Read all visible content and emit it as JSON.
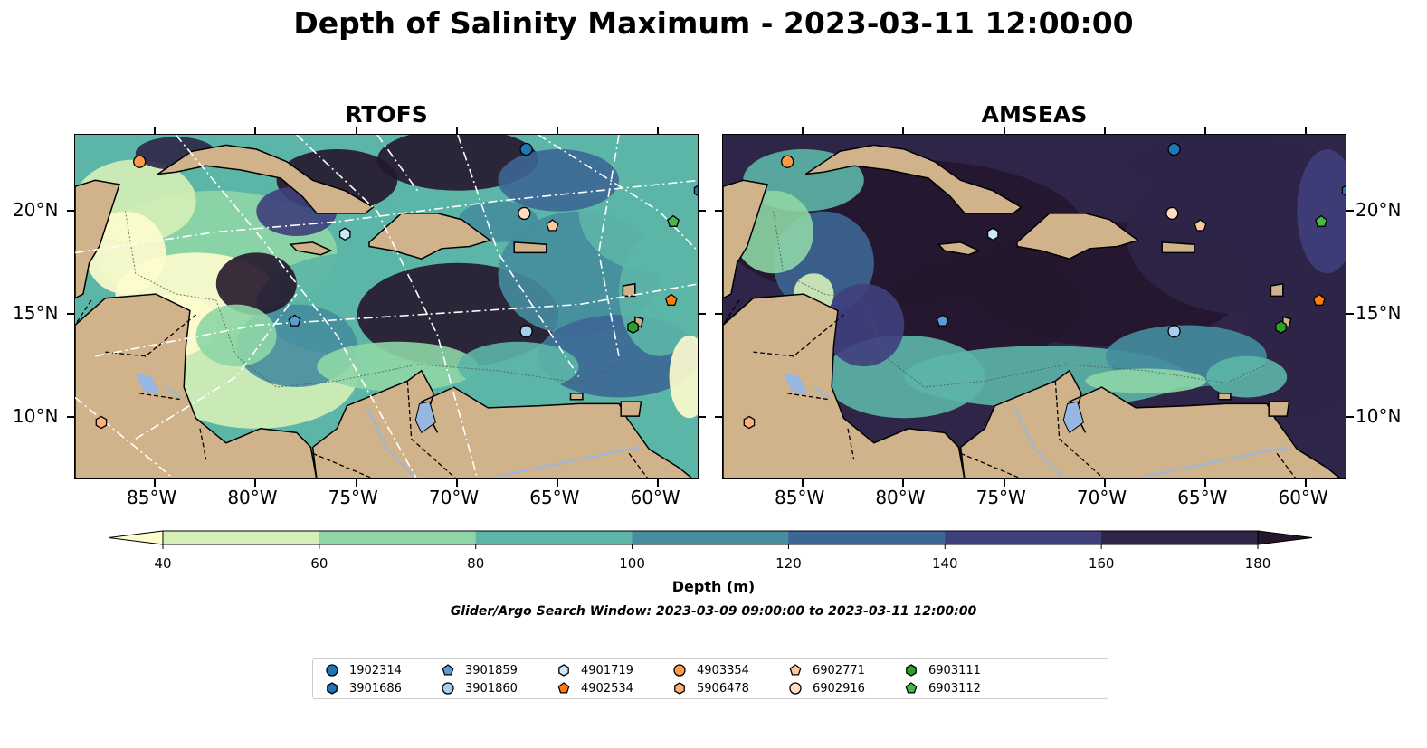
{
  "title": "Depth of Salinity Maximum - 2023-03-11 12:00:00",
  "panels": [
    {
      "title": "RTOFS"
    },
    {
      "title": "AMSEAS"
    }
  ],
  "axes": {
    "lon_ticks": [
      "85°W",
      "80°W",
      "75°W",
      "70°W",
      "65°W",
      "60°W"
    ],
    "lat_ticks": [
      "20°N",
      "15°N",
      "10°N"
    ],
    "extent": {
      "lon_min": -89,
      "lon_max": -58,
      "lat_min": 7,
      "lat_max": 23.7
    }
  },
  "colorbar": {
    "label": "Depth (m)",
    "ticks": [
      "40",
      "60",
      "80",
      "100",
      "120",
      "140",
      "160",
      "180"
    ],
    "levels": [
      40,
      60,
      80,
      100,
      120,
      140,
      160,
      180
    ],
    "colors": [
      "#fefccd",
      "#d6efb7",
      "#8ed6a6",
      "#5cb6a7",
      "#458d9f",
      "#3c6695",
      "#3f3f7c",
      "#2e2548",
      "#25162c"
    ],
    "extend": "both"
  },
  "search_window": "Glider/Argo Search Window: 2023-03-09 09:00:00 to 2023-03-11 12:00:00",
  "colors": {
    "land": "#d1b38b",
    "water": "#97b6e1"
  },
  "legend": [
    {
      "id": "1902314",
      "marker": "circle",
      "color": "#1f77b4"
    },
    {
      "id": "3901686",
      "marker": "hexagon",
      "color": "#1f77b4"
    },
    {
      "id": "3901859",
      "marker": "pentagon",
      "color": "#5d9bd3"
    },
    {
      "id": "3901860",
      "marker": "circle",
      "color": "#a6cfee"
    },
    {
      "id": "4901719",
      "marker": "hexagon",
      "color": "#cde7f7"
    },
    {
      "id": "4902534",
      "marker": "pentagon",
      "color": "#ff7f0e"
    },
    {
      "id": "4903354",
      "marker": "circle",
      "color": "#fd9a48"
    },
    {
      "id": "5906478",
      "marker": "hexagon",
      "color": "#ffb07a"
    },
    {
      "id": "6902771",
      "marker": "pentagon",
      "color": "#ffc89b"
    },
    {
      "id": "6902916",
      "marker": "circle",
      "color": "#ffdcc2"
    },
    {
      "id": "6903111",
      "marker": "hexagon",
      "color": "#2ca02c"
    },
    {
      "id": "6903112",
      "marker": "pentagon",
      "color": "#45b845"
    }
  ],
  "floats": [
    {
      "id": "4903354",
      "lon": -85.8,
      "lat": 22.4,
      "panels": [
        0,
        1
      ]
    },
    {
      "id": "1902314",
      "lon": -66.6,
      "lat": 23.0,
      "panels": [
        0,
        1
      ]
    },
    {
      "id": "3901686",
      "lon": -58.0,
      "lat": 21.0,
      "panels": [
        0,
        1
      ]
    },
    {
      "id": "6902916",
      "lon": -66.7,
      "lat": 19.9,
      "panels": [
        0,
        1
      ]
    },
    {
      "id": "6902771",
      "lon": -65.3,
      "lat": 19.3,
      "panels": [
        0,
        1
      ]
    },
    {
      "id": "6903112",
      "lon": -59.3,
      "lat": 19.5,
      "panels": [
        0,
        1
      ]
    },
    {
      "id": "4901719",
      "lon": -75.6,
      "lat": 18.9,
      "panels": [
        0,
        1
      ]
    },
    {
      "id": "4902534",
      "lon": -59.4,
      "lat": 15.7,
      "panels": [
        0,
        1
      ]
    },
    {
      "id": "3901859",
      "lon": -78.1,
      "lat": 14.7,
      "panels": [
        0,
        1
      ]
    },
    {
      "id": "3901860",
      "lon": -66.6,
      "lat": 14.2,
      "panels": [
        0,
        1
      ]
    },
    {
      "id": "6903111",
      "lon": -61.3,
      "lat": 14.4,
      "panels": [
        0,
        1
      ]
    },
    {
      "id": "5906478",
      "lon": -87.7,
      "lat": 9.8,
      "panels": [
        0,
        1
      ]
    }
  ]
}
